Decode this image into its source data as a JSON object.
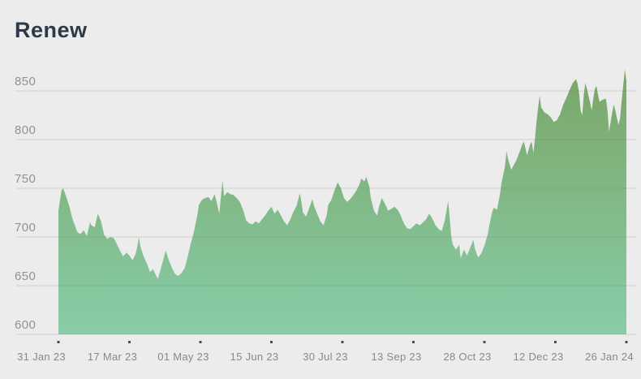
{
  "header": {
    "title": "Renew"
  },
  "colors": {
    "background": "#ececec",
    "title_text": "#2d3b49",
    "axis_label_text": "#8b9399",
    "gridline": "rgba(105,115,120,0.22)",
    "tick_mark": "#3e4d59",
    "area_gradient_top": "#7aa667",
    "area_gradient_bottom": "#88cda8"
  },
  "chart_data": {
    "type": "area",
    "title": "Renew",
    "xlabel": "",
    "ylabel": "",
    "grid": "horizontal",
    "legend": "none",
    "y_ticks": [
      600,
      650,
      700,
      750,
      800,
      850
    ],
    "ylim": [
      600,
      875
    ],
    "x_tick_labels": [
      "31 Jan 23",
      "17 Mar 23",
      "01 May 23",
      "15 Jun 23",
      "30 Jul 23",
      "13 Sep 23",
      "28 Oct 23",
      "12 Dec 23",
      "26 Jan 24"
    ],
    "x_tick_days": [
      0,
      45,
      90,
      135,
      180,
      225,
      270,
      315,
      360
    ],
    "x_range_days": [
      0,
      360
    ],
    "series": [
      {
        "name": "Renew",
        "points": [
          [
            0,
            727
          ],
          [
            2,
            748
          ],
          [
            3,
            750
          ],
          [
            5,
            741
          ],
          [
            7,
            731
          ],
          [
            9,
            718
          ],
          [
            12,
            705
          ],
          [
            14,
            703
          ],
          [
            16,
            707
          ],
          [
            18,
            701
          ],
          [
            20,
            715
          ],
          [
            21,
            712
          ],
          [
            23,
            710
          ],
          [
            25,
            724
          ],
          [
            27,
            716
          ],
          [
            29,
            702
          ],
          [
            31,
            698
          ],
          [
            33,
            700
          ],
          [
            35,
            699
          ],
          [
            37,
            693
          ],
          [
            39,
            686
          ],
          [
            41,
            680
          ],
          [
            43,
            684
          ],
          [
            45,
            681
          ],
          [
            47,
            676
          ],
          [
            49,
            683
          ],
          [
            50,
            690
          ],
          [
            51,
            700
          ],
          [
            52,
            690
          ],
          [
            54,
            680
          ],
          [
            56,
            673
          ],
          [
            58,
            664
          ],
          [
            60,
            667
          ],
          [
            62,
            660
          ],
          [
            63,
            657
          ],
          [
            65,
            668
          ],
          [
            67,
            680
          ],
          [
            68,
            686
          ],
          [
            70,
            676
          ],
          [
            72,
            668
          ],
          [
            74,
            662
          ],
          [
            76,
            660
          ],
          [
            78,
            663
          ],
          [
            80,
            668
          ],
          [
            82,
            680
          ],
          [
            84,
            694
          ],
          [
            86,
            706
          ],
          [
            88,
            722
          ],
          [
            89,
            733
          ],
          [
            91,
            738
          ],
          [
            93,
            740
          ],
          [
            95,
            741
          ],
          [
            97,
            737
          ],
          [
            99,
            744
          ],
          [
            100,
            738
          ],
          [
            102,
            724
          ],
          [
            104,
            758
          ],
          [
            105,
            742
          ],
          [
            107,
            746
          ],
          [
            109,
            744
          ],
          [
            111,
            743
          ],
          [
            113,
            740
          ],
          [
            115,
            736
          ],
          [
            117,
            728
          ],
          [
            119,
            717
          ],
          [
            121,
            714
          ],
          [
            123,
            713
          ],
          [
            125,
            716
          ],
          [
            127,
            714
          ],
          [
            129,
            718
          ],
          [
            131,
            722
          ],
          [
            133,
            727
          ],
          [
            135,
            731
          ],
          [
            137,
            724
          ],
          [
            139,
            728
          ],
          [
            141,
            722
          ],
          [
            143,
            716
          ],
          [
            145,
            712
          ],
          [
            147,
            718
          ],
          [
            149,
            726
          ],
          [
            151,
            732
          ],
          [
            153,
            745
          ],
          [
            154,
            736
          ],
          [
            155,
            725
          ],
          [
            157,
            721
          ],
          [
            159,
            730
          ],
          [
            161,
            739
          ],
          [
            162,
            732
          ],
          [
            164,
            724
          ],
          [
            166,
            716
          ],
          [
            168,
            712
          ],
          [
            170,
            722
          ],
          [
            171,
            733
          ],
          [
            173,
            738
          ],
          [
            175,
            748
          ],
          [
            177,
            756
          ],
          [
            179,
            750
          ],
          [
            181,
            740
          ],
          [
            183,
            736
          ],
          [
            185,
            739
          ],
          [
            187,
            743
          ],
          [
            189,
            748
          ],
          [
            191,
            755
          ],
          [
            192,
            760
          ],
          [
            194,
            757
          ],
          [
            195,
            762
          ],
          [
            197,
            752
          ],
          [
            198,
            740
          ],
          [
            200,
            727
          ],
          [
            202,
            722
          ],
          [
            203,
            730
          ],
          [
            205,
            740
          ],
          [
            207,
            734
          ],
          [
            209,
            727
          ],
          [
            211,
            729
          ],
          [
            213,
            731
          ],
          [
            215,
            728
          ],
          [
            217,
            722
          ],
          [
            219,
            714
          ],
          [
            221,
            709
          ],
          [
            223,
            708
          ],
          [
            225,
            711
          ],
          [
            227,
            714
          ],
          [
            229,
            712
          ],
          [
            231,
            715
          ],
          [
            233,
            718
          ],
          [
            235,
            724
          ],
          [
            237,
            719
          ],
          [
            239,
            712
          ],
          [
            241,
            708
          ],
          [
            243,
            706
          ],
          [
            245,
            718
          ],
          [
            247,
            737
          ],
          [
            248,
            720
          ],
          [
            249,
            700
          ],
          [
            250,
            692
          ],
          [
            252,
            687
          ],
          [
            254,
            692
          ],
          [
            255,
            678
          ],
          [
            257,
            687
          ],
          [
            259,
            681
          ],
          [
            261,
            689
          ],
          [
            263,
            697
          ],
          [
            264,
            688
          ],
          [
            266,
            679
          ],
          [
            268,
            683
          ],
          [
            270,
            691
          ],
          [
            272,
            702
          ],
          [
            273,
            711
          ],
          [
            275,
            726
          ],
          [
            276,
            730
          ],
          [
            278,
            728
          ],
          [
            280,
            745
          ],
          [
            281,
            757
          ],
          [
            283,
            772
          ],
          [
            284,
            788
          ],
          [
            285,
            780
          ],
          [
            287,
            769
          ],
          [
            288,
            772
          ],
          [
            290,
            778
          ],
          [
            292,
            786
          ],
          [
            294,
            795
          ],
          [
            295,
            798
          ],
          [
            296,
            791
          ],
          [
            297,
            784
          ],
          [
            299,
            795
          ],
          [
            300,
            798
          ],
          [
            301,
            786
          ],
          [
            302,
            800
          ],
          [
            303,
            818
          ],
          [
            304,
            832
          ],
          [
            305,
            845
          ],
          [
            306,
            833
          ],
          [
            308,
            828
          ],
          [
            310,
            826
          ],
          [
            312,
            823
          ],
          [
            314,
            818
          ],
          [
            316,
            820
          ],
          [
            318,
            826
          ],
          [
            320,
            836
          ],
          [
            322,
            843
          ],
          [
            324,
            851
          ],
          [
            326,
            858
          ],
          [
            328,
            862
          ],
          [
            329,
            858
          ],
          [
            330,
            848
          ],
          [
            331,
            830
          ],
          [
            332,
            825
          ],
          [
            333,
            846
          ],
          [
            334,
            858
          ],
          [
            335,
            852
          ],
          [
            336,
            845
          ],
          [
            337,
            838
          ],
          [
            338,
            830
          ],
          [
            339,
            842
          ],
          [
            340,
            852
          ],
          [
            341,
            855
          ],
          [
            342,
            846
          ],
          [
            343,
            839
          ],
          [
            345,
            841
          ],
          [
            347,
            842
          ],
          [
            348,
            830
          ],
          [
            349,
            808
          ],
          [
            350,
            818
          ],
          [
            351,
            828
          ],
          [
            352,
            836
          ],
          [
            353,
            830
          ],
          [
            354,
            822
          ],
          [
            355,
            815
          ],
          [
            356,
            822
          ],
          [
            357,
            840
          ],
          [
            359,
            872
          ],
          [
            360,
            860
          ]
        ]
      }
    ]
  }
}
